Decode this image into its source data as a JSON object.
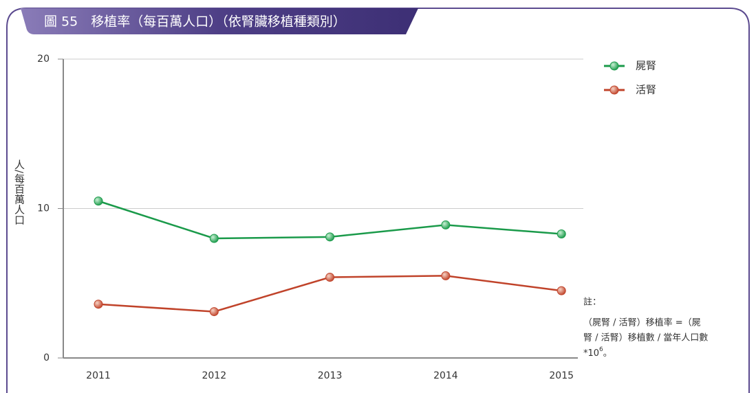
{
  "chart_data": {
    "type": "line",
    "title": "圖 55　移植率（每百萬人口）（依腎臟移植種類別）",
    "ylabel": "人/每百萬人口",
    "categories": [
      "2011",
      "2012",
      "2013",
      "2014",
      "2015"
    ],
    "series": [
      {
        "name": "屍腎",
        "color": "#1a9a4a",
        "values": [
          10.5,
          8.0,
          8.1,
          8.9,
          8.3
        ]
      },
      {
        "name": "活腎",
        "color": "#c0432a",
        "values": [
          3.6,
          3.1,
          5.4,
          5.5,
          4.5
        ]
      }
    ],
    "ylim": [
      0,
      20
    ],
    "yticks": [
      0,
      10,
      20
    ],
    "grid": true,
    "legend": "top-right",
    "note_title": "註：",
    "note_lines": [
      "（屍腎 / 活腎）移植率 =（屍",
      "腎 / 活腎）移植數 / 當年人口數",
      "*10"
    ],
    "note_sup": "6",
    "note_end": "。"
  }
}
